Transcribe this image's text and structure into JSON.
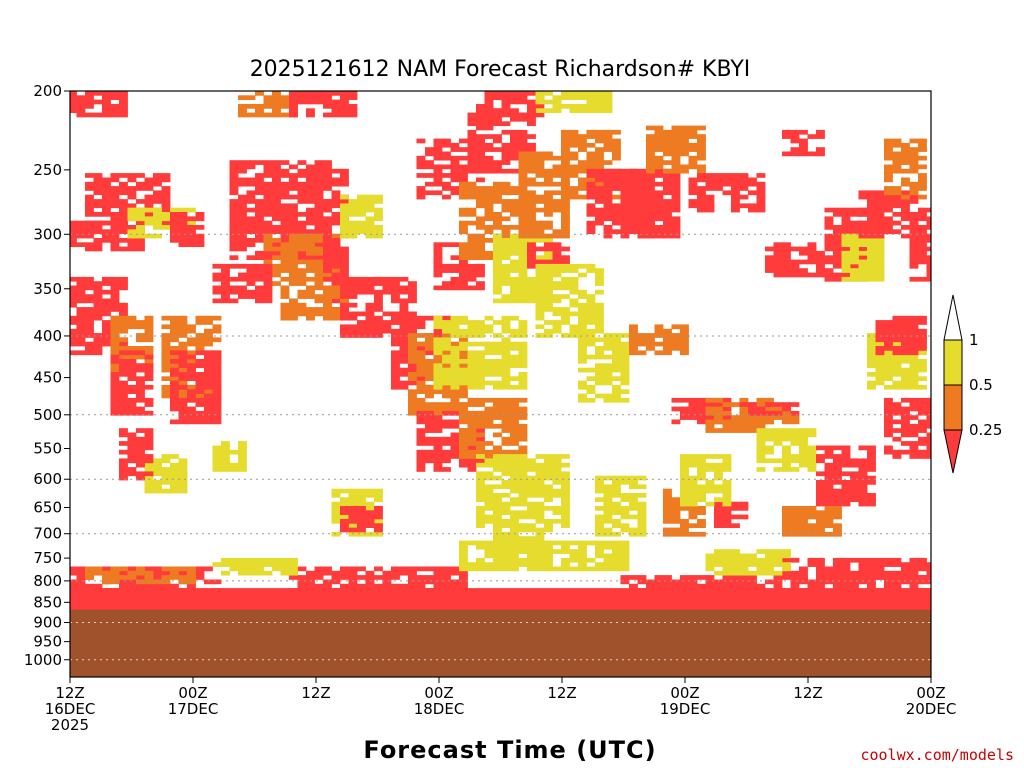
{
  "colors": {
    "low": "#ff3b3b",
    "mid": "#ee7a22",
    "high": "#e6dc2e",
    "ground": "#a0522d",
    "grid": "#999999"
  },
  "chart_data": {
    "type": "heatmap",
    "title": "2025121612 NAM Forecast Richardson# KBYI",
    "xlabel": "Forecast Time (UTC)",
    "credit": "coolwx.com/models",
    "x_range_hours": [
      0,
      84
    ],
    "y_range_hPa": [
      200,
      1050
    ],
    "y_scale": "log",
    "y_ticks": [
      200,
      250,
      300,
      350,
      400,
      450,
      500,
      550,
      600,
      650,
      700,
      750,
      800,
      850,
      900,
      950,
      1000
    ],
    "y_tick_labels": [
      "200",
      "250",
      "300",
      "350",
      "400",
      "450",
      "500",
      "550",
      "600",
      "650",
      "700",
      "750",
      "800",
      "850",
      "900",
      "950",
      "1000"
    ],
    "dotted_grid_levels": [
      300,
      400,
      500,
      600,
      700,
      800,
      900,
      1000
    ],
    "x_ticks": [
      {
        "hour": 0,
        "line1": "12Z",
        "line2": "16DEC",
        "line3": "2025"
      },
      {
        "hour": 12,
        "line1": "00Z",
        "line2": "17DEC",
        "line3": ""
      },
      {
        "hour": 24,
        "line1": "12Z",
        "line2": "",
        "line3": ""
      },
      {
        "hour": 36,
        "line1": "00Z",
        "line2": "18DEC",
        "line3": ""
      },
      {
        "hour": 48,
        "line1": "12Z",
        "line2": "",
        "line3": ""
      },
      {
        "hour": 60,
        "line1": "00Z",
        "line2": "19DEC",
        "line3": ""
      },
      {
        "hour": 72,
        "line1": "12Z",
        "line2": "",
        "line3": ""
      },
      {
        "hour": 84,
        "line1": "00Z",
        "line2": "20DEC",
        "line3": ""
      }
    ],
    "surface_pressure_hPa": 868,
    "colorbar": {
      "labels": [
        "1",
        "0.5",
        "0.25"
      ],
      "bins": [
        "0.5–1",
        "0.25–0.5",
        "<0.25"
      ]
    },
    "regions": [
      {
        "cat": "low",
        "t": [
          0,
          5
        ],
        "p": [
          200,
          215
        ]
      },
      {
        "cat": "mid",
        "t": [
          17,
          22
        ],
        "p": [
          200,
          215
        ]
      },
      {
        "cat": "low",
        "t": [
          22,
          28
        ],
        "p": [
          200,
          215
        ]
      },
      {
        "cat": "low",
        "t": [
          40.5,
          45.5
        ],
        "p": [
          200,
          215
        ]
      },
      {
        "cat": "high",
        "t": [
          45.5,
          52.5
        ],
        "p": [
          200,
          212
        ]
      },
      {
        "cat": "low",
        "t": [
          2,
          9
        ],
        "p": [
          255,
          290
        ]
      },
      {
        "cat": "low",
        "t": [
          0,
          7
        ],
        "p": [
          290,
          312
        ]
      },
      {
        "cat": "high",
        "t": [
          6,
          12
        ],
        "p": [
          280,
          300
        ]
      },
      {
        "cat": "low",
        "t": [
          10,
          13
        ],
        "p": [
          285,
          310
        ]
      },
      {
        "cat": "low",
        "t": [
          16,
          25
        ],
        "p": [
          245,
          320
        ]
      },
      {
        "cat": "mid",
        "t": [
          19,
          26
        ],
        "p": [
          300,
          345
        ]
      },
      {
        "cat": "low",
        "t": [
          25,
          27
        ],
        "p": [
          250,
          370
        ]
      },
      {
        "cat": "high",
        "t": [
          27,
          30
        ],
        "p": [
          270,
          300
        ]
      },
      {
        "cat": "low",
        "t": [
          0,
          5
        ],
        "p": [
          340,
          420
        ]
      },
      {
        "cat": "mid",
        "t": [
          4,
          8
        ],
        "p": [
          380,
          440
        ]
      },
      {
        "cat": "low",
        "t": [
          4,
          8
        ],
        "p": [
          420,
          500
        ]
      },
      {
        "cat": "mid",
        "t": [
          9,
          14
        ],
        "p": [
          380,
          480
        ]
      },
      {
        "cat": "low",
        "t": [
          10,
          14
        ],
        "p": [
          420,
          510
        ]
      },
      {
        "cat": "low",
        "t": [
          14,
          19
        ],
        "p": [
          330,
          360
        ]
      },
      {
        "cat": "mid",
        "t": [
          21,
          27
        ],
        "p": [
          350,
          380
        ]
      },
      {
        "cat": "low",
        "t": [
          27,
          33
        ],
        "p": [
          340,
          400
        ]
      },
      {
        "cat": "low",
        "t": [
          32,
          37
        ],
        "p": [
          380,
          460
        ]
      },
      {
        "cat": "mid",
        "t": [
          33,
          38
        ],
        "p": [
          400,
          500
        ]
      },
      {
        "cat": "low",
        "t": [
          34,
          40
        ],
        "p": [
          500,
          580
        ]
      },
      {
        "cat": "mid",
        "t": [
          38,
          44
        ],
        "p": [
          480,
          560
        ]
      },
      {
        "cat": "high",
        "t": [
          40,
          48
        ],
        "p": [
          560,
          680
        ]
      },
      {
        "cat": "high",
        "t": [
          36,
          44
        ],
        "p": [
          380,
          460
        ]
      },
      {
        "cat": "low",
        "t": [
          34,
          40
        ],
        "p": [
          230,
          270
        ]
      },
      {
        "cat": "low",
        "t": [
          36,
          40
        ],
        "p": [
          310,
          350
        ]
      },
      {
        "cat": "mid",
        "t": [
          38,
          44
        ],
        "p": [
          260,
          320
        ]
      },
      {
        "cat": "low",
        "t": [
          39,
          45
        ],
        "p": [
          210,
          250
        ]
      },
      {
        "cat": "high",
        "t": [
          42,
          47
        ],
        "p": [
          300,
          360
        ]
      },
      {
        "cat": "mid",
        "t": [
          44,
          48
        ],
        "p": [
          240,
          300
        ]
      },
      {
        "cat": "low",
        "t": [
          45,
          49
        ],
        "p": [
          310,
          330
        ]
      },
      {
        "cat": "high",
        "t": [
          46,
          52
        ],
        "p": [
          330,
          400
        ]
      },
      {
        "cat": "mid",
        "t": [
          48,
          53
        ],
        "p": [
          225,
          270
        ]
      },
      {
        "cat": "low",
        "t": [
          51,
          57
        ],
        "p": [
          250,
          300
        ]
      },
      {
        "cat": "high",
        "t": [
          50,
          54
        ],
        "p": [
          400,
          480
        ]
      },
      {
        "cat": "low",
        "t": [
          55,
          59
        ],
        "p": [
          250,
          300
        ]
      },
      {
        "cat": "mid",
        "t": [
          57,
          62
        ],
        "p": [
          222,
          250
        ]
      },
      {
        "cat": "low",
        "t": [
          61,
          67
        ],
        "p": [
          255,
          280
        ]
      },
      {
        "cat": "low",
        "t": [
          68,
          73
        ],
        "p": [
          310,
          335
        ]
      },
      {
        "cat": "low",
        "t": [
          70,
          73
        ],
        "p": [
          225,
          240
        ]
      },
      {
        "cat": "low",
        "t": [
          74,
          77
        ],
        "p": [
          280,
          340
        ]
      },
      {
        "cat": "high",
        "t": [
          76,
          79
        ],
        "p": [
          300,
          340
        ]
      },
      {
        "cat": "low",
        "t": [
          77,
          82
        ],
        "p": [
          265,
          300
        ]
      },
      {
        "cat": "mid",
        "t": [
          80,
          83
        ],
        "p": [
          230,
          270
        ]
      },
      {
        "cat": "low",
        "t": [
          82,
          84
        ],
        "p": [
          280,
          340
        ]
      },
      {
        "cat": "mid",
        "t": [
          55,
          60
        ],
        "p": [
          390,
          420
        ]
      },
      {
        "cat": "low",
        "t": [
          59,
          64
        ],
        "p": [
          480,
          510
        ]
      },
      {
        "cat": "mid",
        "t": [
          62,
          68
        ],
        "p": [
          480,
          520
        ]
      },
      {
        "cat": "mid",
        "t": [
          66,
          71
        ],
        "p": [
          490,
          510
        ]
      },
      {
        "cat": "low",
        "t": [
          66,
          71
        ],
        "p": [
          485,
          500
        ]
      },
      {
        "cat": "high",
        "t": [
          67,
          72
        ],
        "p": [
          520,
          580
        ]
      },
      {
        "cat": "low",
        "t": [
          73,
          78
        ],
        "p": [
          550,
          640
        ]
      },
      {
        "cat": "high",
        "t": [
          78,
          83
        ],
        "p": [
          400,
          460
        ]
      },
      {
        "cat": "low",
        "t": [
          79,
          83
        ],
        "p": [
          380,
          420
        ]
      },
      {
        "cat": "mid",
        "t": [
          70,
          75
        ],
        "p": [
          650,
          700
        ]
      },
      {
        "cat": "low",
        "t": [
          80,
          84
        ],
        "p": [
          480,
          560
        ]
      },
      {
        "cat": "high",
        "t": [
          8,
          11
        ],
        "p": [
          560,
          620
        ]
      },
      {
        "cat": "low",
        "t": [
          5,
          8
        ],
        "p": [
          520,
          600
        ]
      },
      {
        "cat": "high",
        "t": [
          14,
          17
        ],
        "p": [
          540,
          580
        ]
      },
      {
        "cat": "high",
        "t": [
          26,
          30
        ],
        "p": [
          620,
          700
        ]
      },
      {
        "cat": "low",
        "t": [
          27,
          30
        ],
        "p": [
          650,
          690
        ]
      },
      {
        "cat": "high",
        "t": [
          42,
          47
        ],
        "p": [
          680,
          760
        ]
      },
      {
        "cat": "high",
        "t": [
          52,
          56
        ],
        "p": [
          600,
          700
        ]
      },
      {
        "cat": "mid",
        "t": [
          58,
          62
        ],
        "p": [
          620,
          700
        ]
      },
      {
        "cat": "low",
        "t": [
          63,
          66
        ],
        "p": [
          640,
          680
        ]
      },
      {
        "cat": "high",
        "t": [
          60,
          64
        ],
        "p": [
          560,
          640
        ]
      },
      {
        "cat": "low",
        "t": [
          0,
          84
        ],
        "p": [
          820,
          868
        ]
      },
      {
        "cat": "low",
        "t": [
          0,
          14
        ],
        "p": [
          775,
          820
        ]
      },
      {
        "cat": "mid",
        "t": [
          2,
          12
        ],
        "p": [
          770,
          800
        ]
      },
      {
        "cat": "low",
        "t": [
          22,
          38
        ],
        "p": [
          770,
          820
        ]
      },
      {
        "cat": "high",
        "t": [
          14,
          22
        ],
        "p": [
          750,
          780
        ]
      },
      {
        "cat": "low",
        "t": [
          54,
          84
        ],
        "p": [
          790,
          825
        ]
      },
      {
        "cat": "high",
        "t": [
          38,
          54
        ],
        "p": [
          720,
          770
        ]
      },
      {
        "cat": "low",
        "t": [
          70,
          84
        ],
        "p": [
          750,
          790
        ]
      },
      {
        "cat": "high",
        "t": [
          62,
          70
        ],
        "p": [
          740,
          780
        ]
      }
    ]
  }
}
